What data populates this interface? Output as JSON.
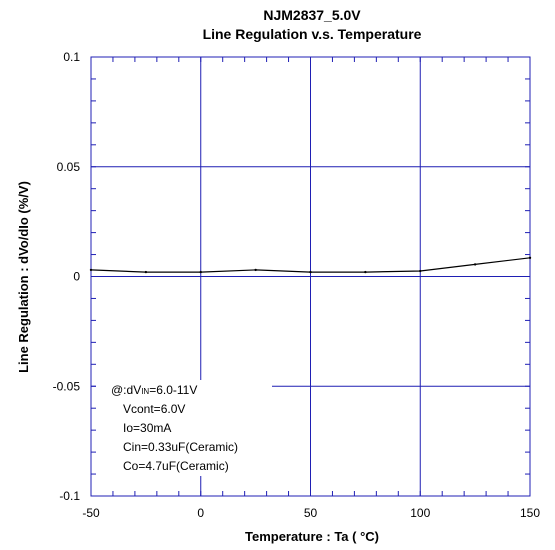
{
  "chart_data": {
    "type": "line",
    "title": "NJM2837_5.0V",
    "subtitle": "Line Regulation v.s. Temperature",
    "xlabel_main": "Temperature : Ta ( ",
    "xlabel_unit": "°C)",
    "ylabel": "Line Regulation : dVo/dIo (%/V)",
    "xlim": [
      -50,
      150
    ],
    "ylim": [
      -0.1,
      0.1
    ],
    "x_ticks": [
      -50,
      0,
      50,
      100,
      150
    ],
    "x_tick_labels": [
      "-50",
      "0",
      "50",
      "100",
      "150"
    ],
    "y_ticks": [
      0.1,
      0.05,
      0,
      -0.05,
      -0.1
    ],
    "y_tick_labels": [
      "0.1",
      "0.05",
      "0",
      "-0.05",
      "-0.1"
    ],
    "grid": true,
    "series": [
      {
        "x": [
          -50,
          -25,
          0,
          25,
          50,
          75,
          100,
          125,
          150
        ],
        "y": [
          0.003,
          0.002,
          0.002,
          0.003,
          0.002,
          0.002,
          0.0025,
          0.0055,
          0.0085
        ]
      }
    ],
    "annotation": {
      "line1_prefix": "@:dV",
      "line1_sub": "IN",
      "line1_suffix": "=6.0-11V",
      "line2": "Vcont=6.0V",
      "line3": "Io=30mA",
      "line4": "Cin=0.33uF(Ceramic)",
      "line5": "Co=4.7uF(Ceramic)"
    },
    "colors": {
      "frame": "#1f1fb4",
      "grid": "#1f1fb4",
      "line": "#000000"
    }
  }
}
